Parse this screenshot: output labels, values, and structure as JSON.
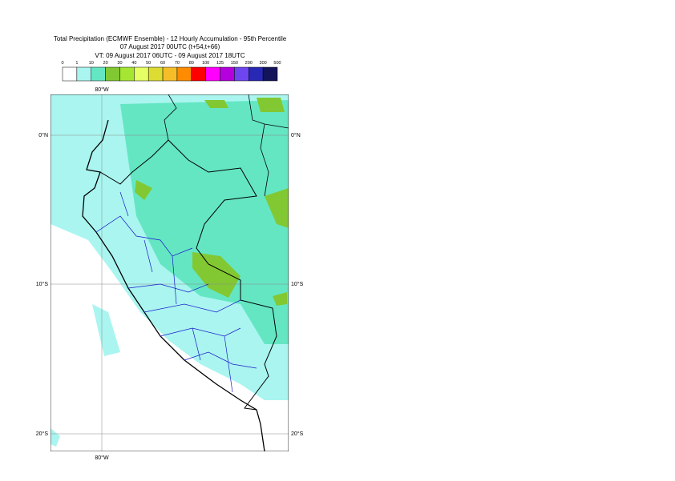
{
  "header": {
    "title": "Total Precipitation (ECMWF Ensemble) - 12 Hourly Accumulation - 95th Percentile",
    "line2": "07 August 2017 00UTC (t+54,t+66)",
    "line3": "VT: 09 August 2017 06UTC - 09 August 2017 18UTC"
  },
  "legend": {
    "labels": [
      0,
      1,
      10,
      20,
      30,
      40,
      50,
      60,
      70,
      80,
      100,
      125,
      150,
      200,
      300,
      500
    ],
    "colors": [
      "#ffffff",
      "#aaf5f0",
      "#64e6c3",
      "#82c832",
      "#a5e632",
      "#e6ff64",
      "#dcdc32",
      "#f5be28",
      "#ff8c00",
      "#ff0000",
      "#ff00ff",
      "#b400dc",
      "#6e46f0",
      "#2828b4",
      "#14145a"
    ]
  },
  "map": {
    "lon_label": "80°W",
    "lat_labels": [
      "0°N",
      "10°S",
      "20°S"
    ]
  }
}
